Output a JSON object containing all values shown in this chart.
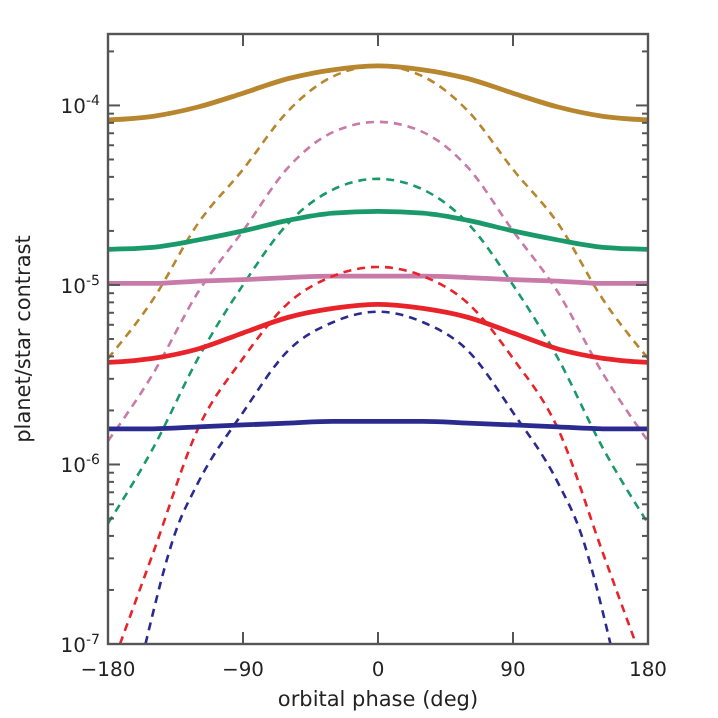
{
  "chart_data": {
    "type": "line",
    "xlabel": "orbital phase (deg)",
    "ylabel": "planet/star contrast",
    "log": "y",
    "grid": false,
    "marker": "none",
    "xlim": [
      -180,
      180
    ],
    "xticks": [
      -180,
      -90,
      0,
      90,
      180
    ],
    "ylim": [
      1e-07,
      0.00025
    ],
    "yticks": [
      {
        "value": 1e-07,
        "label": "10$^{-7}$"
      },
      {
        "value": 2e-07,
        "label": null
      },
      {
        "value": 3e-07,
        "label": null
      },
      {
        "value": 4e-07,
        "label": null
      },
      {
        "value": 5e-07,
        "label": null
      },
      {
        "value": 6e-07,
        "label": null
      },
      {
        "value": 7e-07,
        "label": null
      },
      {
        "value": 8e-07,
        "label": null
      },
      {
        "value": 9e-07,
        "label": null
      },
      {
        "value": 1e-06,
        "label": "10$^{-6}$"
      },
      {
        "value": 2e-06,
        "label": null
      },
      {
        "value": 3e-06,
        "label": null
      },
      {
        "value": 4e-06,
        "label": null
      },
      {
        "value": 5e-06,
        "label": null
      },
      {
        "value": 6e-06,
        "label": null
      },
      {
        "value": 7e-06,
        "label": null
      },
      {
        "value": 8e-06,
        "label": null
      },
      {
        "value": 9e-06,
        "label": null
      },
      {
        "value": 1e-05,
        "label": "10$^{-5}$"
      },
      {
        "value": 2e-05,
        "label": null
      },
      {
        "value": 3e-05,
        "label": null
      },
      {
        "value": 4e-05,
        "label": null
      },
      {
        "value": 5e-05,
        "label": null
      },
      {
        "value": 6e-05,
        "label": null
      },
      {
        "value": 7e-05,
        "label": null
      },
      {
        "value": 8e-05,
        "label": null
      },
      {
        "value": 9e-05,
        "label": null
      },
      {
        "value": 0.0001,
        "label": "10$^{-4}$"
      },
      {
        "value": 0.0002,
        "label": null
      }
    ],
    "series": [
      {
        "color": "#b8862e",
        "line_style": "solid",
        "x": [
          -180,
          -150,
          -120,
          -90,
          -60,
          -30,
          0,
          30,
          60,
          90,
          120,
          150,
          180
        ],
        "values": [
          8.3e-05,
          8.7e-05,
          9.8e-05,
          0.000117,
          0.000141,
          0.000158,
          0.000166,
          0.000158,
          0.000141,
          0.000117,
          9.8e-05,
          8.7e-05,
          8.3e-05
        ]
      },
      {
        "color": "#b8862e",
        "line_style": "dashed",
        "x": [
          -180,
          -150,
          -120,
          -90,
          -60,
          -30,
          0,
          30,
          60,
          90,
          120,
          150,
          180
        ],
        "values": [
          3.9e-06,
          8.3e-06,
          2.2e-05,
          4.4e-05,
          9.3e-05,
          0.000145,
          0.000166,
          0.000145,
          9.3e-05,
          4.4e-05,
          2.2e-05,
          8.3e-06,
          3.9e-06
        ]
      },
      {
        "color": "#c87aa8",
        "line_style": "dashed",
        "x": [
          -180,
          -150,
          -120,
          -90,
          -60,
          -30,
          0,
          30,
          60,
          90,
          120,
          150,
          180
        ],
        "values": [
          1.35e-06,
          3.2e-06,
          9.1e-06,
          2e-05,
          4.5e-05,
          7.1e-05,
          8.1e-05,
          7.1e-05,
          4.5e-05,
          2e-05,
          9.1e-06,
          3.2e-06,
          1.35e-06
        ]
      },
      {
        "color": "#1a9a6a",
        "line_style": "dashed",
        "x": [
          -180,
          -150,
          -120,
          -90,
          -60,
          -30,
          0,
          30,
          60,
          90,
          120,
          150,
          180
        ],
        "values": [
          4.7e-07,
          1.23e-06,
          3.9e-06,
          1e-05,
          2.2e-05,
          3.4e-05,
          3.9e-05,
          3.4e-05,
          2.2e-05,
          1e-05,
          3.9e-06,
          1.23e-06,
          4.7e-07
        ]
      },
      {
        "color": "#1a9a6a",
        "line_style": "solid",
        "x": [
          -180,
          -150,
          -120,
          -90,
          -60,
          -30,
          0,
          30,
          60,
          90,
          120,
          150,
          180
        ],
        "values": [
          1.58e-05,
          1.62e-05,
          1.78e-05,
          2e-05,
          2.29e-05,
          2.51e-05,
          2.57e-05,
          2.51e-05,
          2.29e-05,
          2e-05,
          1.78e-05,
          1.62e-05,
          1.58e-05
        ]
      },
      {
        "color": "#c87aa8",
        "line_style": "solid",
        "x": [
          -180,
          -150,
          -120,
          -90,
          -60,
          -30,
          0,
          30,
          60,
          90,
          120,
          150,
          180
        ],
        "values": [
          1.02e-05,
          1.02e-05,
          1.05e-05,
          1.07e-05,
          1.1e-05,
          1.12e-05,
          1.12e-05,
          1.12e-05,
          1.1e-05,
          1.07e-05,
          1.05e-05,
          1.02e-05,
          1.02e-05
        ]
      },
      {
        "color": "#e8242a",
        "line_style": "dashed",
        "x": [
          -172,
          -150,
          -120,
          -90,
          -60,
          -30,
          0,
          30,
          60,
          90,
          120,
          150,
          172
        ],
        "values": [
          1e-07,
          3.2e-07,
          1.58e-06,
          3.9e-06,
          7.9e-06,
          1.12e-05,
          1.26e-05,
          1.12e-05,
          7.9e-06,
          3.9e-06,
          1.58e-06,
          3.2e-07,
          1e-07
        ]
      },
      {
        "color": "#e8242a",
        "line_style": "solid",
        "x": [
          -180,
          -150,
          -120,
          -90,
          -60,
          -30,
          0,
          30,
          60,
          90,
          120,
          150,
          180
        ],
        "values": [
          3.7e-06,
          3.9e-06,
          4.4e-06,
          5.4e-06,
          6.6e-06,
          7.4e-06,
          7.8e-06,
          7.4e-06,
          6.6e-06,
          5.4e-06,
          4.4e-06,
          3.9e-06,
          3.7e-06
        ]
      },
      {
        "color": "#2b2b8f",
        "line_style": "dashed",
        "x": [
          -155,
          -135,
          -120,
          -90,
          -60,
          -30,
          0,
          30,
          60,
          90,
          120,
          135,
          155
        ],
        "values": [
          1e-07,
          4.2e-07,
          7.9e-07,
          1.95e-06,
          4.3e-06,
          6.2e-06,
          7.1e-06,
          6.2e-06,
          4.3e-06,
          1.95e-06,
          7.9e-07,
          4.2e-07,
          1e-07
        ]
      },
      {
        "color": "#2b2b8f",
        "line_style": "solid",
        "x": [
          -180,
          -150,
          -120,
          -90,
          -60,
          -30,
          0,
          30,
          60,
          90,
          120,
          150,
          180
        ],
        "values": [
          1.58e-06,
          1.58e-06,
          1.62e-06,
          1.66e-06,
          1.7e-06,
          1.74e-06,
          1.74e-06,
          1.74e-06,
          1.7e-06,
          1.66e-06,
          1.62e-06,
          1.58e-06,
          1.58e-06
        ]
      }
    ]
  }
}
